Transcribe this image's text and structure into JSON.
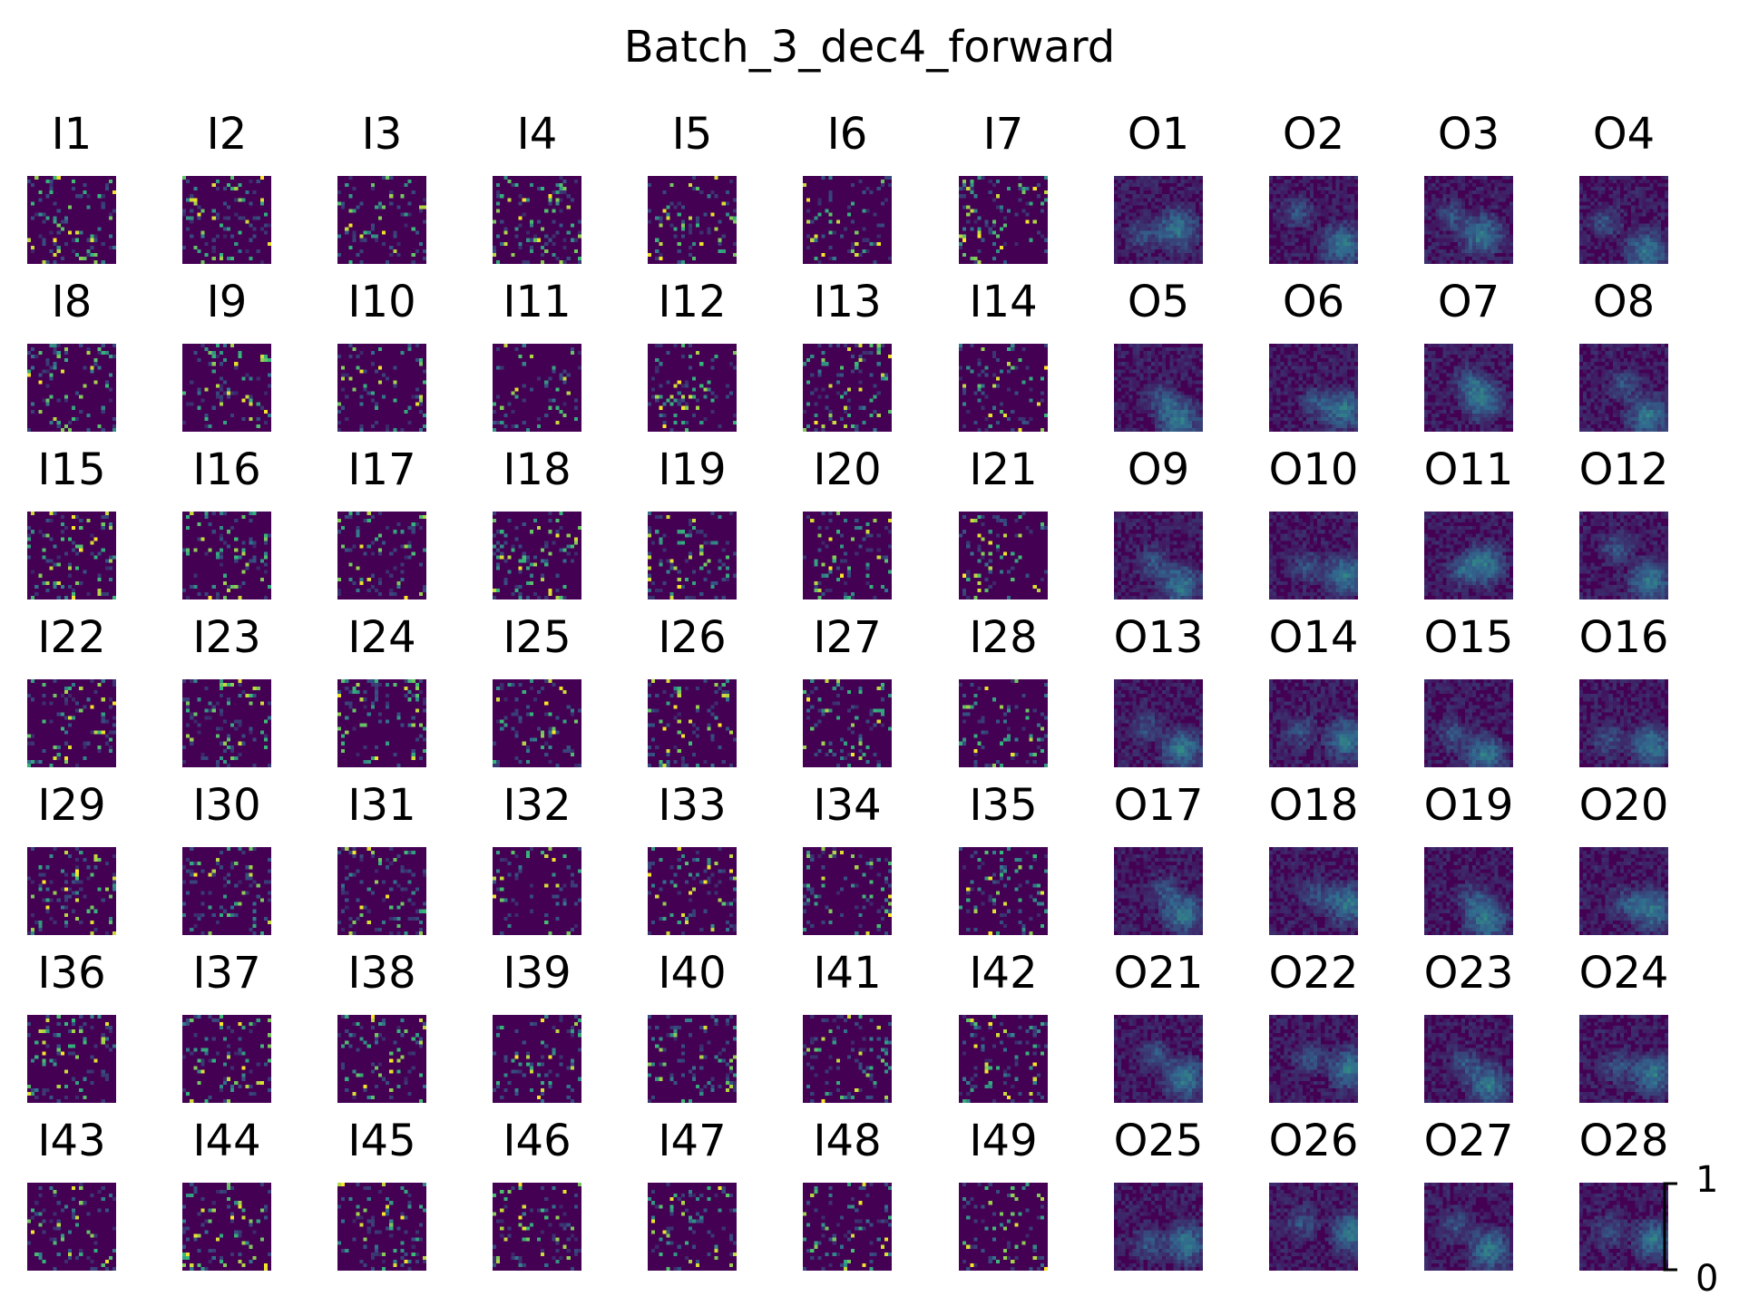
{
  "figure_title": "Batch_3_dec4_forward",
  "chart_data": {
    "type": "heatmap",
    "title": "Batch_3_dec4_forward",
    "colormap": "viridis",
    "colormap_stops": [
      "#440154",
      "#31688e",
      "#35b779",
      "#fde725"
    ],
    "background_color": "#440154",
    "grid": {
      "rows": 7,
      "cols": 11
    },
    "panels": [
      [
        "I1",
        "I2",
        "I3",
        "I4",
        "I5",
        "I6",
        "I7",
        "O1",
        "O2",
        "O3",
        "O4"
      ],
      [
        "I8",
        "I9",
        "I10",
        "I11",
        "I12",
        "I13",
        "I14",
        "O5",
        "O6",
        "O7",
        "O8"
      ],
      [
        "I15",
        "I16",
        "I17",
        "I18",
        "I19",
        "I20",
        "I21",
        "O9",
        "O10",
        "O11",
        "O12"
      ],
      [
        "I22",
        "I23",
        "I24",
        "I25",
        "I26",
        "I27",
        "I28",
        "O13",
        "O14",
        "O15",
        "O16"
      ],
      [
        "I29",
        "I30",
        "I31",
        "I32",
        "I33",
        "I34",
        "I35",
        "O17",
        "O18",
        "O19",
        "O20"
      ],
      [
        "I36",
        "I37",
        "I38",
        "I39",
        "I40",
        "I41",
        "I42",
        "O21",
        "O22",
        "O23",
        "O24"
      ],
      [
        "I43",
        "I44",
        "I45",
        "I46",
        "I47",
        "I48",
        "I49",
        "O25",
        "O26",
        "O27",
        "O28"
      ]
    ],
    "colorbar": {
      "range": [
        0,
        1
      ],
      "tick_labels": [
        "1",
        "0"
      ]
    }
  }
}
